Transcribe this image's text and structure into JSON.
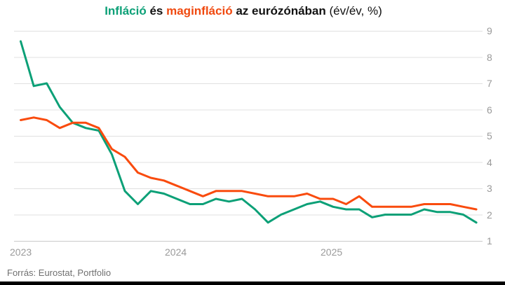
{
  "title": {
    "word_inflation": "Infláció",
    "word_and": "és",
    "word_core_inflation": "maginfláció",
    "word_region": "az eurózónában",
    "word_unit": "(év/év, %)"
  },
  "source": "Forrás: Eurostat, Portfolio",
  "colors": {
    "inflation_line": "#0CA077",
    "core_inflation_line": "#F94B0E",
    "title_text": "#111111",
    "grid_line": "#e0e0e0",
    "axis_line": "#c9c9c9",
    "tick_text": "#9a9a9a",
    "source_text": "#707070",
    "bottom_bar": "#000000",
    "background": "#ffffff"
  },
  "chart_data": {
    "type": "line",
    "title": "Infláció és maginfláció az eurózónában (év/év, %)",
    "xlabel": "",
    "ylabel": "év/év, %",
    "ylim": [
      1,
      9
    ],
    "yticks": [
      1,
      2,
      3,
      4,
      5,
      6,
      7,
      8,
      9
    ],
    "y_axis_side": "right",
    "grid": "horizontal",
    "legend_position": "in-title",
    "xticks": [
      "2023",
      "2024",
      "2025"
    ],
    "categories": [
      "2023-01",
      "2023-02",
      "2023-03",
      "2023-04",
      "2023-05",
      "2023-06",
      "2023-07",
      "2023-08",
      "2023-09",
      "2023-10",
      "2023-11",
      "2023-12",
      "2024-01",
      "2024-02",
      "2024-03",
      "2024-04",
      "2024-05",
      "2024-06",
      "2024-07",
      "2024-08",
      "2024-09",
      "2024-10",
      "2024-11",
      "2024-12",
      "2025-01",
      "2025-02",
      "2025-03",
      "2025-04",
      "2025-05",
      "2025-06",
      "2025-07",
      "2025-08",
      "2025-09",
      "2025-10",
      "2025-11",
      "2025-12"
    ],
    "series": [
      {
        "name": "Infláció",
        "slug": "inflation-line",
        "color": "#0CA077",
        "values": [
          8.6,
          6.9,
          7.0,
          6.1,
          5.5,
          5.3,
          5.2,
          4.3,
          2.9,
          2.4,
          2.9,
          2.8,
          2.6,
          2.4,
          2.4,
          2.6,
          2.5,
          2.6,
          2.2,
          1.7,
          2.0,
          2.2,
          2.4,
          2.5,
          2.3,
          2.2,
          2.2,
          1.9,
          2.0,
          2.0,
          2.0,
          2.2,
          2.1,
          2.1,
          2.0,
          1.7
        ]
      },
      {
        "name": "maginfláció",
        "slug": "core-inflation-line",
        "color": "#F94B0E",
        "values": [
          5.6,
          5.7,
          5.6,
          5.3,
          5.5,
          5.5,
          5.3,
          4.5,
          4.2,
          3.6,
          3.4,
          3.3,
          3.1,
          2.9,
          2.7,
          2.9,
          2.9,
          2.9,
          2.8,
          2.7,
          2.7,
          2.7,
          2.8,
          2.6,
          2.6,
          2.4,
          2.7,
          2.3,
          2.3,
          2.3,
          2.3,
          2.4,
          2.4,
          2.4,
          2.3,
          2.2
        ]
      }
    ]
  }
}
